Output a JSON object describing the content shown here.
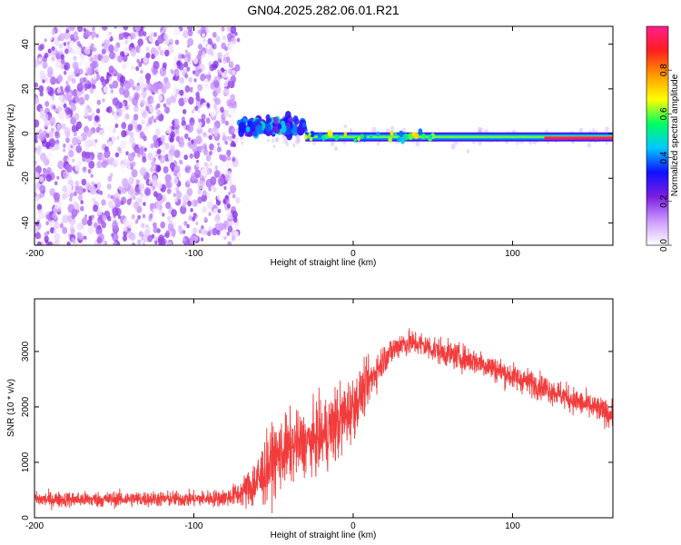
{
  "title": "GN04.2025.282.06.01.R21",
  "chart_data": [
    {
      "type": "heatmap",
      "title": "GN04.2025.282.06.01.R21",
      "xlabel": "Height of straight line (km)",
      "ylabel": "Frequency (Hz)",
      "xlim": [
        -200,
        163
      ],
      "ylim": [
        -50,
        48
      ],
      "xticks": [
        -200,
        -100,
        0,
        100
      ],
      "xtick_labels": [
        "-200",
        "-100",
        "0",
        "100"
      ],
      "yticks": [
        -40,
        -20,
        0,
        20,
        40
      ],
      "ytick_labels": [
        "-40",
        "-20",
        "0",
        "20",
        "40"
      ],
      "colorbar": {
        "label": "Normalized spectral amplitude",
        "range": [
          0,
          1
        ],
        "ticks": [
          0.0,
          0.2,
          0.4,
          0.6,
          0.8
        ],
        "tick_labels": [
          "0.0",
          "0.2",
          "0.4",
          "0.6",
          "0.8"
        ],
        "stops": [
          "#ffffff",
          "#cc99ff",
          "#7a1ee0",
          "#1010ff",
          "#00c8ff",
          "#00ff60",
          "#ffff00",
          "#ff9900",
          "#ff1e1e",
          "#ff1e8c"
        ]
      },
      "regions": [
        {
          "name": "noise",
          "x_range": [
            -200,
            -72
          ],
          "freq_range": [
            -50,
            48
          ],
          "amplitude": 0.1
        },
        {
          "name": "onset",
          "x_range": [
            -72,
            -30
          ],
          "freq_center": 3,
          "amplitude": 0.3
        },
        {
          "name": "tone",
          "x_range": [
            -30,
            163
          ],
          "freq_center": -1.5,
          "amplitude": 0.5
        },
        {
          "name": "peak-tone",
          "x_range": [
            120,
            163
          ],
          "freq_center": -2,
          "amplitude": 0.95
        }
      ]
    },
    {
      "type": "line",
      "xlabel": "Height of straight line (km)",
      "ylabel": "SNR (10 * v/v)",
      "xlim": [
        -200,
        163
      ],
      "ylim": [
        0,
        3950
      ],
      "xticks": [
        -200,
        -100,
        0,
        100
      ],
      "xtick_labels": [
        "-200",
        "-100",
        "0",
        "100"
      ],
      "yticks": [
        0,
        1000,
        2000,
        3000
      ],
      "ytick_labels": [
        "0",
        "1000",
        "2000",
        "3000"
      ],
      "color": "#f23c3c",
      "series": [
        {
          "name": "SNR",
          "x": [
            -200,
            -180,
            -160,
            -140,
            -120,
            -100,
            -80,
            -70,
            -60,
            -50,
            -40,
            -30,
            -20,
            -10,
            0,
            10,
            20,
            30,
            40,
            50,
            60,
            80,
            100,
            120,
            140,
            163
          ],
          "y": [
            330,
            330,
            330,
            340,
            340,
            340,
            360,
            450,
            650,
            1050,
            1250,
            1350,
            1450,
            1700,
            2000,
            2450,
            2900,
            3150,
            3150,
            3050,
            2950,
            2800,
            2550,
            2350,
            2100,
            1850
          ],
          "noise": [
            180,
            180,
            180,
            180,
            180,
            180,
            200,
            300,
            700,
            800,
            800,
            700,
            800,
            900,
            700,
            500,
            350,
            300,
            300,
            300,
            300,
            300,
            300,
            300,
            300,
            300
          ]
        }
      ]
    }
  ]
}
